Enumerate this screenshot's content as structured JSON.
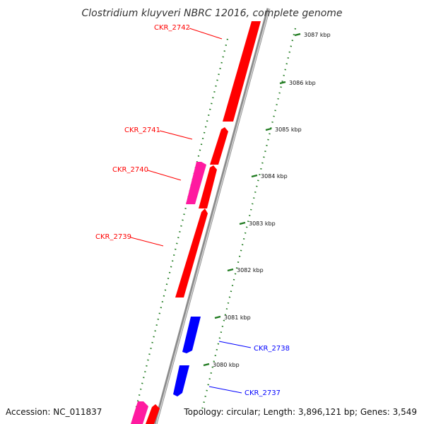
{
  "title": "Clostridium kluyveri NBRC 12016, complete genome",
  "footer": {
    "accession": "Accession: NC_011837",
    "topology": "Topology: circular; Length: 3,896,121 bp; Genes: 3,549"
  },
  "colors": {
    "forward_gene": "#ff0000",
    "reverse_gene": "#0000ff",
    "other_feature": "#ff1aa0",
    "scale_ticks": "#1e7a1e",
    "backbone": "#999999"
  },
  "ticks": [
    "3087 kbp",
    "3086 kbp",
    "3085 kbp",
    "3084 kbp",
    "3083 kbp",
    "3082 kbp",
    "3081 kbp",
    "3080 kbp"
  ],
  "gene_labels": [
    {
      "id": "CKR_2742",
      "label": "CKR_2742",
      "strand": "forward"
    },
    {
      "id": "CKR_2741",
      "label": "CKR_2741",
      "strand": "forward"
    },
    {
      "id": "CKR_2740",
      "label": "CKR_2740",
      "strand": "forward"
    },
    {
      "id": "CKR_2739",
      "label": "CKR_2739",
      "strand": "forward"
    },
    {
      "id": "CKR_2738",
      "label": "CKR_2738",
      "strand": "reverse"
    },
    {
      "id": "CKR_2737",
      "label": "CKR_2737",
      "strand": "reverse"
    }
  ]
}
